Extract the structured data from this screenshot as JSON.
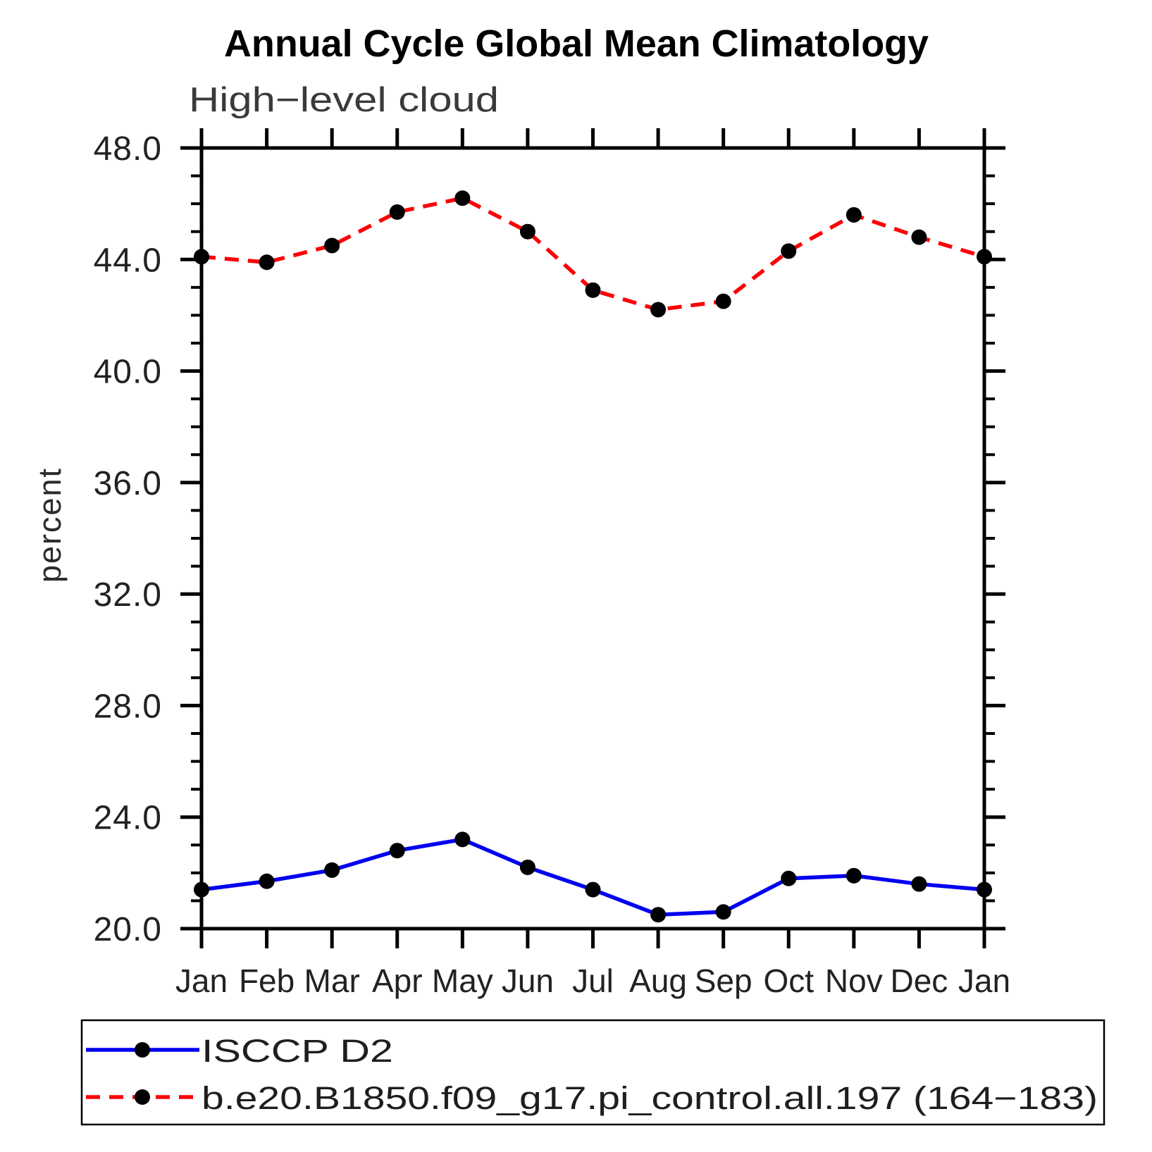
{
  "chart_data": {
    "type": "line",
    "title": "Annual Cycle Global Mean Climatology",
    "subtitle": "High−level cloud",
    "xlabel": "",
    "ylabel": "percent",
    "ylim": [
      20.0,
      48.0
    ],
    "ytick_major_interval": 4.0,
    "ytick_minor_interval": 1.0,
    "ytick_labels": [
      "20.0",
      "24.0",
      "28.0",
      "32.0",
      "36.0",
      "40.0",
      "44.0",
      "48.0"
    ],
    "categories": [
      "Jan",
      "Feb",
      "Mar",
      "Apr",
      "May",
      "Jun",
      "Jul",
      "Aug",
      "Sep",
      "Oct",
      "Nov",
      "Dec",
      "Jan"
    ],
    "grid": false,
    "legend_position": "bottom",
    "axis_color": "#000000",
    "marker_shape": "filled-circle",
    "series": [
      {
        "name": "ISCCP D2",
        "line_style": "solid",
        "color": "#0000f0",
        "marker_color": "#000000",
        "values": [
          21.4,
          21.7,
          22.1,
          22.8,
          23.2,
          22.2,
          21.4,
          20.5,
          20.6,
          21.8,
          21.9,
          21.6,
          21.4
        ]
      },
      {
        "name": "b.e20.B1850.f09_g17.pi_control.all.197 (164−183)",
        "line_style": "dashed",
        "color": "#fb0007",
        "marker_color": "#000000",
        "values": [
          44.1,
          43.9,
          44.5,
          45.7,
          46.2,
          45.0,
          42.9,
          42.2,
          42.5,
          44.3,
          45.6,
          44.8,
          44.1
        ]
      }
    ]
  }
}
